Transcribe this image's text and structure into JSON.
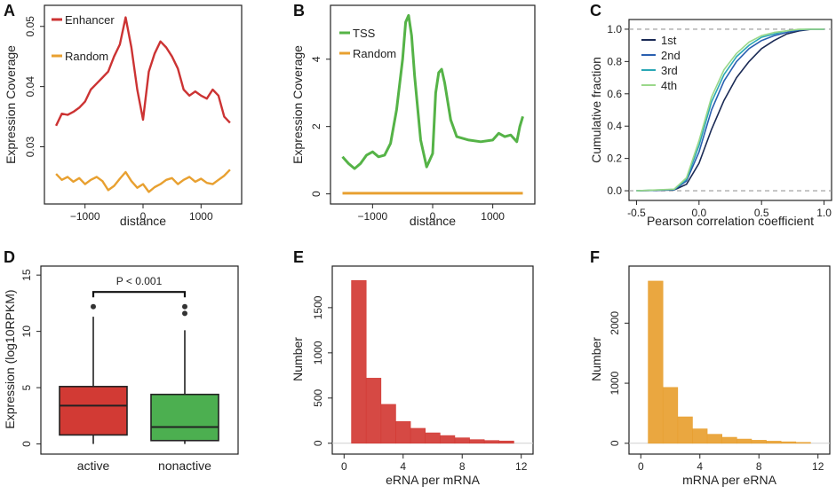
{
  "chart_data": [
    {
      "panel": "A",
      "type": "line",
      "xlabel": "distance",
      "ylabel": "Expression Coverage",
      "xticks": [
        -1000,
        0,
        1000
      ],
      "yticks": [
        0.03,
        0.04,
        0.05
      ],
      "xlim": [
        -1700,
        1700
      ],
      "ylim": [
        0.0205,
        0.0535
      ],
      "legend_position": "top-left",
      "series": [
        {
          "name": "Enhancer",
          "color": "#cc3333",
          "x": [
            -1500,
            -1400,
            -1300,
            -1200,
            -1100,
            -1000,
            -900,
            -800,
            -700,
            -600,
            -500,
            -400,
            -300,
            -200,
            -100,
            0,
            100,
            200,
            300,
            400,
            500,
            600,
            700,
            800,
            900,
            1000,
            1100,
            1200,
            1300,
            1400,
            1500
          ],
          "y": [
            0.0335,
            0.0355,
            0.0353,
            0.0358,
            0.0365,
            0.0375,
            0.0395,
            0.0405,
            0.0415,
            0.0425,
            0.045,
            0.047,
            0.0515,
            0.0465,
            0.0395,
            0.0345,
            0.0425,
            0.0455,
            0.0475,
            0.0465,
            0.045,
            0.043,
            0.0395,
            0.0385,
            0.0392,
            0.0385,
            0.038,
            0.0395,
            0.0385,
            0.035,
            0.034
          ]
        },
        {
          "name": "Random",
          "color": "#e8a030",
          "x": [
            -1500,
            -1400,
            -1300,
            -1200,
            -1100,
            -1000,
            -900,
            -800,
            -700,
            -600,
            -500,
            -400,
            -300,
            -200,
            -100,
            0,
            100,
            200,
            300,
            400,
            500,
            600,
            700,
            800,
            900,
            1000,
            1100,
            1200,
            1300,
            1400,
            1500
          ],
          "y": [
            0.0255,
            0.0245,
            0.025,
            0.0242,
            0.0248,
            0.0238,
            0.0245,
            0.025,
            0.0243,
            0.0228,
            0.0235,
            0.0247,
            0.0258,
            0.0243,
            0.0232,
            0.0238,
            0.0225,
            0.0233,
            0.0238,
            0.0245,
            0.0248,
            0.0238,
            0.0245,
            0.025,
            0.0242,
            0.0247,
            0.024,
            0.0238,
            0.0245,
            0.0252,
            0.0262
          ]
        }
      ]
    },
    {
      "panel": "B",
      "type": "line",
      "xlabel": "distance",
      "ylabel": "Expression Coverage",
      "xticks": [
        -1000,
        0,
        1000
      ],
      "yticks": [
        0,
        2,
        4
      ],
      "xlim": [
        -1700,
        1700
      ],
      "ylim": [
        -0.3,
        5.6
      ],
      "legend_position": "top-left",
      "series": [
        {
          "name": "TSS",
          "color": "#55b347",
          "x": [
            -1500,
            -1400,
            -1300,
            -1200,
            -1100,
            -1000,
            -900,
            -800,
            -700,
            -600,
            -500,
            -450,
            -400,
            -350,
            -300,
            -200,
            -100,
            0,
            50,
            100,
            150,
            200,
            300,
            400,
            600,
            800,
            1000,
            1100,
            1200,
            1300,
            1400,
            1450,
            1500
          ],
          "y": [
            1.1,
            0.9,
            0.75,
            0.9,
            1.15,
            1.25,
            1.1,
            1.15,
            1.5,
            2.5,
            4.0,
            5.1,
            5.3,
            4.7,
            3.5,
            1.6,
            0.8,
            1.2,
            3.0,
            3.6,
            3.7,
            3.3,
            2.2,
            1.7,
            1.6,
            1.55,
            1.6,
            1.8,
            1.7,
            1.75,
            1.55,
            2.0,
            2.3
          ]
        },
        {
          "name": "Random",
          "color": "#e8a030",
          "x": [
            -1500,
            1500
          ],
          "y": [
            0.02,
            0.02
          ]
        }
      ]
    },
    {
      "panel": "C",
      "type": "line",
      "xlabel": "Pearson correlation coefficient",
      "ylabel": "Cumulative fraction",
      "xticks": [
        -0.5,
        0.0,
        0.5,
        1.0
      ],
      "yticks": [
        0.0,
        0.2,
        0.4,
        0.6,
        0.8,
        1.0
      ],
      "xlim": [
        -0.56,
        1.06
      ],
      "ylim": [
        -0.06,
        1.06
      ],
      "legend_position": "top-left",
      "series": [
        {
          "name": "1st",
          "color": "#1a2a55",
          "x": [
            -0.5,
            -0.2,
            -0.1,
            0.0,
            0.1,
            0.2,
            0.3,
            0.4,
            0.5,
            0.6,
            0.7,
            0.8,
            0.9,
            1.0
          ],
          "y": [
            0.0,
            0.005,
            0.04,
            0.17,
            0.38,
            0.56,
            0.7,
            0.8,
            0.88,
            0.93,
            0.97,
            0.99,
            1.0,
            1.0
          ]
        },
        {
          "name": "2nd",
          "color": "#2a5fb0",
          "x": [
            -0.5,
            -0.2,
            -0.1,
            0.0,
            0.1,
            0.2,
            0.3,
            0.4,
            0.5,
            0.6,
            0.7,
            0.8,
            0.9,
            1.0
          ],
          "y": [
            0.0,
            0.006,
            0.06,
            0.24,
            0.5,
            0.68,
            0.8,
            0.88,
            0.93,
            0.96,
            0.98,
            0.995,
            1.0,
            1.0
          ]
        },
        {
          "name": "3rd",
          "color": "#2aa7b5",
          "x": [
            -0.5,
            -0.2,
            -0.1,
            0.0,
            0.1,
            0.2,
            0.3,
            0.4,
            0.5,
            0.6,
            0.7,
            0.8,
            0.9,
            1.0
          ],
          "y": [
            0.0,
            0.008,
            0.07,
            0.28,
            0.55,
            0.72,
            0.83,
            0.9,
            0.95,
            0.97,
            0.99,
            0.998,
            1.0,
            1.0
          ]
        },
        {
          "name": "4th",
          "color": "#9ad88a",
          "x": [
            -0.5,
            -0.2,
            -0.1,
            0.0,
            0.1,
            0.2,
            0.3,
            0.4,
            0.5,
            0.6,
            0.7,
            0.8,
            0.9,
            1.0
          ],
          "y": [
            0.0,
            0.01,
            0.08,
            0.31,
            0.58,
            0.75,
            0.85,
            0.92,
            0.96,
            0.98,
            0.99,
            0.999,
            1.0,
            1.0
          ]
        }
      ],
      "reference_lines": [
        0.0,
        1.0
      ]
    },
    {
      "panel": "D",
      "type": "box",
      "xlabel": "",
      "ylabel": "Expression (log10RPKM)",
      "categories": [
        "active",
        "nonactive"
      ],
      "colors": [
        "#d23a34",
        "#4caf50"
      ],
      "yticks": [
        0,
        5,
        10,
        15
      ],
      "ylim": [
        -0.9,
        15.8
      ],
      "boxes": [
        {
          "whisker_low": 0.0,
          "q1": 0.8,
          "median": 3.4,
          "q3": 5.1,
          "whisker_high": 11.3,
          "outlier": 12.2
        },
        {
          "whisker_low": 0.0,
          "q1": 0.3,
          "median": 1.5,
          "q3": 4.4,
          "whisker_high": 10.1,
          "outliers": [
            11.6,
            12.2
          ]
        }
      ],
      "annotation": "P < 0.001",
      "annotation_y": 13.5
    },
    {
      "panel": "E",
      "type": "bar",
      "xlabel": "eRNA per mRNA",
      "ylabel": "Number",
      "color": "#d23a34",
      "xticks": [
        0,
        4,
        8,
        12
      ],
      "yticks": [
        0,
        500,
        1000,
        1500
      ],
      "xlim": [
        -0.8,
        12.8
      ],
      "ylim": [
        -120,
        1960
      ],
      "bin_edges": [
        0.5,
        1.5,
        2.5,
        3.5,
        4.5,
        5.5,
        6.5,
        7.5,
        8.5,
        9.5,
        10.5,
        11.5
      ],
      "values": [
        1800,
        720,
        430,
        240,
        165,
        115,
        85,
        60,
        40,
        30,
        25
      ]
    },
    {
      "panel": "F",
      "type": "bar",
      "xlabel": "mRNA per eRNA",
      "ylabel": "Number",
      "color": "#e8a030",
      "xticks": [
        0,
        4,
        8,
        12
      ],
      "yticks": [
        0,
        1000,
        2000
      ],
      "xlim": [
        -0.8,
        12.8
      ],
      "ylim": [
        -180,
        2950
      ],
      "bin_edges": [
        0.5,
        1.5,
        2.5,
        3.5,
        4.5,
        5.5,
        6.5,
        7.5,
        8.5,
        9.5,
        10.5,
        11.5
      ],
      "values": [
        2700,
        930,
        440,
        240,
        150,
        100,
        70,
        50,
        35,
        25,
        15
      ]
    }
  ]
}
